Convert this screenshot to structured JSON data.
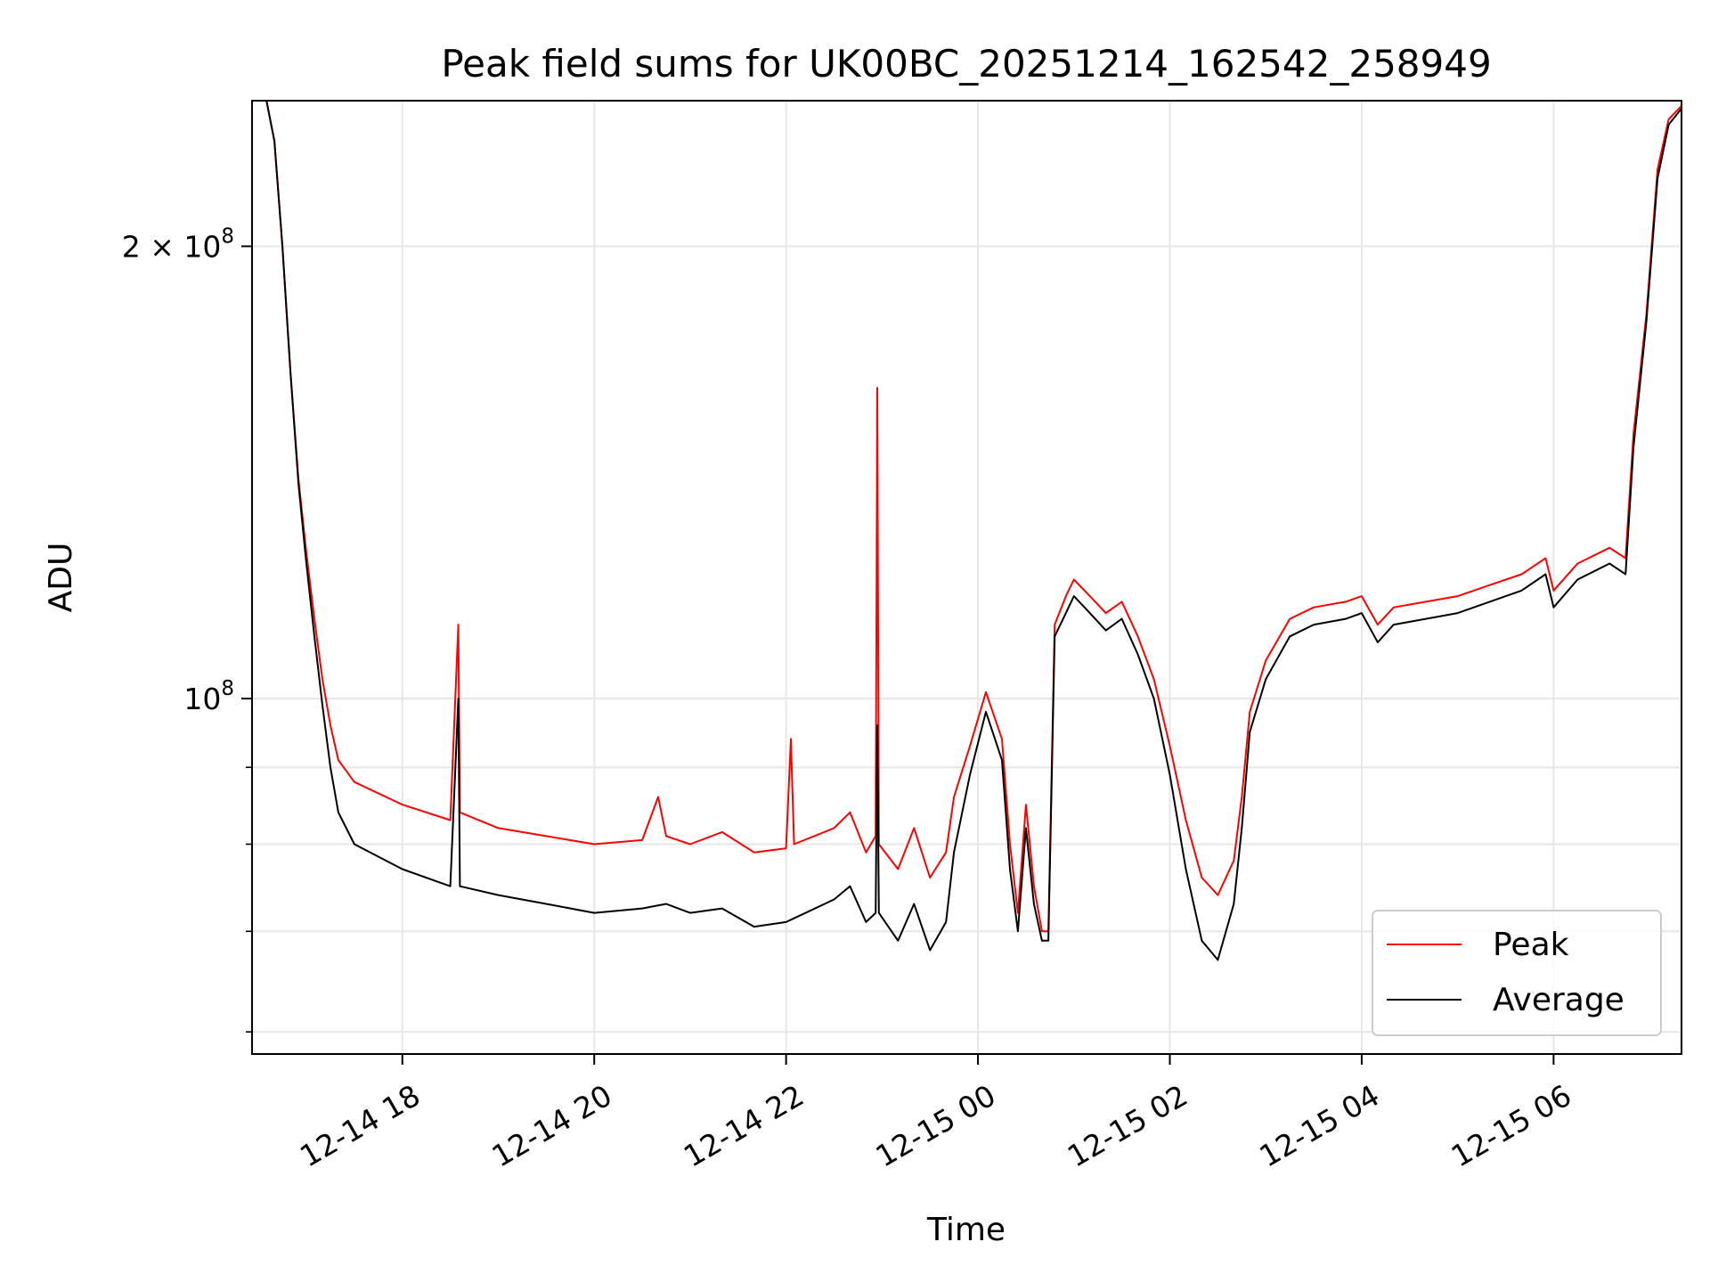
{
  "chart_data": {
    "type": "line",
    "title": "Peak field sums for UK00BC_20251214_162542_258949",
    "xlabel": "Time",
    "ylabel": "ADU",
    "y_scale": "log",
    "xlim": [
      "2025-12-14 16:26",
      "2025-12-15 07:20"
    ],
    "ylim": [
      58000000,
      250000000
    ],
    "x_ticks": [
      {
        "value": "2025-12-14 18:00",
        "label": "12-14 18"
      },
      {
        "value": "2025-12-14 20:00",
        "label": "12-14 20"
      },
      {
        "value": "2025-12-14 22:00",
        "label": "12-14 22"
      },
      {
        "value": "2025-12-15 00:00",
        "label": "12-15 00"
      },
      {
        "value": "2025-12-15 02:00",
        "label": "12-15 02"
      },
      {
        "value": "2025-12-15 04:00",
        "label": "12-15 04"
      },
      {
        "value": "2025-12-15 06:00",
        "label": "12-15 06"
      }
    ],
    "y_major_ticks": [
      {
        "value": 100000000,
        "base": "10",
        "exp": "8",
        "prefix": ""
      },
      {
        "value": 200000000,
        "base": "10",
        "exp": "8",
        "prefix": "2 × "
      }
    ],
    "y_minor_ticks": [
      60000000,
      70000000,
      80000000,
      90000000
    ],
    "grid": true,
    "legend_position": "lower-right",
    "series": [
      {
        "name": "Peak",
        "color": "#ff0000",
        "points": [
          [
            "2025-12-14 16:26",
            250000000
          ],
          [
            "2025-12-14 16:35",
            250000000
          ],
          [
            "2025-12-14 16:40",
            235000000
          ],
          [
            "2025-12-14 16:45",
            200000000
          ],
          [
            "2025-12-14 16:50",
            165000000
          ],
          [
            "2025-12-14 16:55",
            140000000
          ],
          [
            "2025-12-14 17:00",
            125000000
          ],
          [
            "2025-12-14 17:05",
            113000000
          ],
          [
            "2025-12-14 17:10",
            103000000
          ],
          [
            "2025-12-14 17:15",
            96000000
          ],
          [
            "2025-12-14 17:20",
            91000000
          ],
          [
            "2025-12-14 17:30",
            88000000
          ],
          [
            "2025-12-14 18:00",
            85000000
          ],
          [
            "2025-12-14 18:30",
            83000000
          ],
          [
            "2025-12-14 18:35",
            112000000
          ],
          [
            "2025-12-14 18:36",
            84000000
          ],
          [
            "2025-12-14 19:00",
            82000000
          ],
          [
            "2025-12-14 19:30",
            81000000
          ],
          [
            "2025-12-14 20:00",
            80000000
          ],
          [
            "2025-12-14 20:30",
            80500000
          ],
          [
            "2025-12-14 20:40",
            86000000
          ],
          [
            "2025-12-14 20:45",
            81000000
          ],
          [
            "2025-12-14 21:00",
            80000000
          ],
          [
            "2025-12-14 21:20",
            81500000
          ],
          [
            "2025-12-14 21:40",
            79000000
          ],
          [
            "2025-12-14 22:00",
            79500000
          ],
          [
            "2025-12-14 22:03",
            94000000
          ],
          [
            "2025-12-14 22:05",
            80000000
          ],
          [
            "2025-12-14 22:30",
            82000000
          ],
          [
            "2025-12-14 22:40",
            84000000
          ],
          [
            "2025-12-14 22:50",
            79000000
          ],
          [
            "2025-12-14 22:56",
            81000000
          ],
          [
            "2025-12-14 22:57",
            161000000
          ],
          [
            "2025-12-14 22:58",
            80000000
          ],
          [
            "2025-12-14 23:10",
            77000000
          ],
          [
            "2025-12-14 23:20",
            82000000
          ],
          [
            "2025-12-14 23:30",
            76000000
          ],
          [
            "2025-12-14 23:40",
            79000000
          ],
          [
            "2025-12-14 23:45",
            86000000
          ],
          [
            "2025-12-14 23:55",
            93000000
          ],
          [
            "2025-12-15 00:05",
            101000000
          ],
          [
            "2025-12-15 00:15",
            94000000
          ],
          [
            "2025-12-15 00:20",
            80000000
          ],
          [
            "2025-12-15 00:25",
            72000000
          ],
          [
            "2025-12-15 00:30",
            85000000
          ],
          [
            "2025-12-15 00:35",
            75000000
          ],
          [
            "2025-12-15 00:40",
            70000000
          ],
          [
            "2025-12-15 00:44",
            70000000
          ],
          [
            "2025-12-15 00:48",
            112000000
          ],
          [
            "2025-12-15 00:55",
            117000000
          ],
          [
            "2025-12-15 01:00",
            120000000
          ],
          [
            "2025-12-15 01:10",
            117000000
          ],
          [
            "2025-12-15 01:20",
            114000000
          ],
          [
            "2025-12-15 01:30",
            116000000
          ],
          [
            "2025-12-15 01:40",
            110000000
          ],
          [
            "2025-12-15 01:50",
            103000000
          ],
          [
            "2025-12-15 02:00",
            93000000
          ],
          [
            "2025-12-15 02:10",
            83000000
          ],
          [
            "2025-12-15 02:20",
            76000000
          ],
          [
            "2025-12-15 02:30",
            74000000
          ],
          [
            "2025-12-15 02:40",
            78000000
          ],
          [
            "2025-12-15 02:45",
            86000000
          ],
          [
            "2025-12-15 02:50",
            98000000
          ],
          [
            "2025-12-15 03:00",
            106000000
          ],
          [
            "2025-12-15 03:15",
            113000000
          ],
          [
            "2025-12-15 03:30",
            115000000
          ],
          [
            "2025-12-15 03:50",
            116000000
          ],
          [
            "2025-12-15 04:00",
            117000000
          ],
          [
            "2025-12-15 04:10",
            112000000
          ],
          [
            "2025-12-15 04:20",
            115000000
          ],
          [
            "2025-12-15 04:40",
            116000000
          ],
          [
            "2025-12-15 05:00",
            117000000
          ],
          [
            "2025-12-15 05:20",
            119000000
          ],
          [
            "2025-12-15 05:40",
            121000000
          ],
          [
            "2025-12-15 05:55",
            124000000
          ],
          [
            "2025-12-15 06:00",
            118000000
          ],
          [
            "2025-12-15 06:15",
            123000000
          ],
          [
            "2025-12-15 06:35",
            126000000
          ],
          [
            "2025-12-15 06:45",
            124000000
          ],
          [
            "2025-12-15 06:50",
            150000000
          ],
          [
            "2025-12-15 06:58",
            180000000
          ],
          [
            "2025-12-15 07:05",
            225000000
          ],
          [
            "2025-12-15 07:12",
            243000000
          ],
          [
            "2025-12-15 07:20",
            248000000
          ]
        ]
      },
      {
        "name": "Average",
        "color": "#000000",
        "points": [
          [
            "2025-12-14 16:26",
            250000000
          ],
          [
            "2025-12-14 16:35",
            250000000
          ],
          [
            "2025-12-14 16:40",
            235000000
          ],
          [
            "2025-12-14 16:45",
            200000000
          ],
          [
            "2025-12-14 16:50",
            165000000
          ],
          [
            "2025-12-14 16:55",
            139000000
          ],
          [
            "2025-12-14 17:00",
            123000000
          ],
          [
            "2025-12-14 17:05",
            110000000
          ],
          [
            "2025-12-14 17:10",
            99000000
          ],
          [
            "2025-12-14 17:15",
            90000000
          ],
          [
            "2025-12-14 17:20",
            84000000
          ],
          [
            "2025-12-14 17:30",
            80000000
          ],
          [
            "2025-12-14 18:00",
            77000000
          ],
          [
            "2025-12-14 18:30",
            75000000
          ],
          [
            "2025-12-14 18:35",
            100000000
          ],
          [
            "2025-12-14 18:36",
            75000000
          ],
          [
            "2025-12-14 19:00",
            74000000
          ],
          [
            "2025-12-14 19:30",
            73000000
          ],
          [
            "2025-12-14 20:00",
            72000000
          ],
          [
            "2025-12-14 20:30",
            72500000
          ],
          [
            "2025-12-14 20:45",
            73000000
          ],
          [
            "2025-12-14 21:00",
            72000000
          ],
          [
            "2025-12-14 21:20",
            72500000
          ],
          [
            "2025-12-14 21:40",
            70500000
          ],
          [
            "2025-12-14 22:00",
            71000000
          ],
          [
            "2025-12-14 22:30",
            73500000
          ],
          [
            "2025-12-14 22:40",
            75000000
          ],
          [
            "2025-12-14 22:50",
            71000000
          ],
          [
            "2025-12-14 22:56",
            72000000
          ],
          [
            "2025-12-14 22:57",
            96000000
          ],
          [
            "2025-12-14 22:58",
            72000000
          ],
          [
            "2025-12-14 23:10",
            69000000
          ],
          [
            "2025-12-14 23:20",
            73000000
          ],
          [
            "2025-12-14 23:30",
            68000000
          ],
          [
            "2025-12-14 23:40",
            71000000
          ],
          [
            "2025-12-14 23:45",
            79000000
          ],
          [
            "2025-12-14 23:55",
            89000000
          ],
          [
            "2025-12-15 00:05",
            98000000
          ],
          [
            "2025-12-15 00:15",
            91000000
          ],
          [
            "2025-12-15 00:20",
            77000000
          ],
          [
            "2025-12-15 00:25",
            70000000
          ],
          [
            "2025-12-15 00:30",
            82000000
          ],
          [
            "2025-12-15 00:35",
            73000000
          ],
          [
            "2025-12-15 00:40",
            69000000
          ],
          [
            "2025-12-15 00:44",
            69000000
          ],
          [
            "2025-12-15 00:48",
            110000000
          ],
          [
            "2025-12-15 00:55",
            114000000
          ],
          [
            "2025-12-15 01:00",
            117000000
          ],
          [
            "2025-12-15 01:10",
            114000000
          ],
          [
            "2025-12-15 01:20",
            111000000
          ],
          [
            "2025-12-15 01:30",
            113000000
          ],
          [
            "2025-12-15 01:40",
            107000000
          ],
          [
            "2025-12-15 01:50",
            100000000
          ],
          [
            "2025-12-15 02:00",
            89000000
          ],
          [
            "2025-12-15 02:10",
            77000000
          ],
          [
            "2025-12-15 02:20",
            69000000
          ],
          [
            "2025-12-15 02:30",
            67000000
          ],
          [
            "2025-12-15 02:40",
            73000000
          ],
          [
            "2025-12-15 02:45",
            82000000
          ],
          [
            "2025-12-15 02:50",
            95000000
          ],
          [
            "2025-12-15 03:00",
            103000000
          ],
          [
            "2025-12-15 03:15",
            110000000
          ],
          [
            "2025-12-15 03:30",
            112000000
          ],
          [
            "2025-12-15 03:50",
            113000000
          ],
          [
            "2025-12-15 04:00",
            114000000
          ],
          [
            "2025-12-15 04:10",
            109000000
          ],
          [
            "2025-12-15 04:20",
            112000000
          ],
          [
            "2025-12-15 04:40",
            113000000
          ],
          [
            "2025-12-15 05:00",
            114000000
          ],
          [
            "2025-12-15 05:20",
            116000000
          ],
          [
            "2025-12-15 05:40",
            118000000
          ],
          [
            "2025-12-15 05:55",
            121000000
          ],
          [
            "2025-12-15 06:00",
            115000000
          ],
          [
            "2025-12-15 06:15",
            120000000
          ],
          [
            "2025-12-15 06:35",
            123000000
          ],
          [
            "2025-12-15 06:45",
            121000000
          ],
          [
            "2025-12-15 06:50",
            147000000
          ],
          [
            "2025-12-15 06:58",
            178000000
          ],
          [
            "2025-12-15 07:05",
            222000000
          ],
          [
            "2025-12-15 07:12",
            241000000
          ],
          [
            "2025-12-15 07:20",
            247000000
          ]
        ]
      }
    ]
  }
}
